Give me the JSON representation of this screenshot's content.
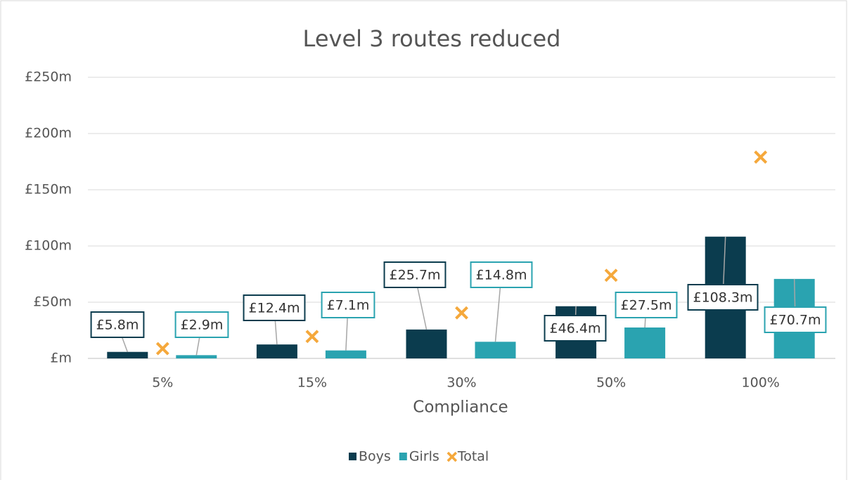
{
  "chart_data": {
    "type": "bar",
    "title": "Level 3 routes reduced",
    "x_label": "Compliance",
    "categories": [
      "5%",
      "15%",
      "30%",
      "50%",
      "100%"
    ],
    "series": [
      {
        "name": "Boys",
        "color": "#0b3c4e",
        "values": [
          5.8,
          12.4,
          25.7,
          46.4,
          108.3
        ],
        "value_labels": [
          "£5.8m",
          "£12.4m",
          "£25.7m",
          "£46.4m",
          "£108.3m"
        ]
      },
      {
        "name": "Girls",
        "color": "#2aa3b0",
        "values": [
          2.9,
          7.1,
          14.8,
          27.5,
          70.7
        ],
        "value_labels": [
          "£2.9m",
          "£7.1m",
          "£14.8m",
          "£27.5m",
          "£70.7m"
        ]
      },
      {
        "name": "Total",
        "type": "scatter",
        "marker": "x",
        "color": "#f5a83b",
        "values": [
          8.7,
          19.5,
          40.5,
          73.9,
          179.0
        ]
      }
    ],
    "ylim": [
      0,
      250
    ],
    "yticks": [
      {
        "value": 0,
        "label": "£m"
      },
      {
        "value": 50,
        "label": "£50m"
      },
      {
        "value": 100,
        "label": "£100m"
      },
      {
        "value": 150,
        "label": "£150m"
      },
      {
        "value": 200,
        "label": "£200m"
      },
      {
        "value": 250,
        "label": "£250m"
      }
    ],
    "grid": true,
    "legend": "bottom"
  }
}
